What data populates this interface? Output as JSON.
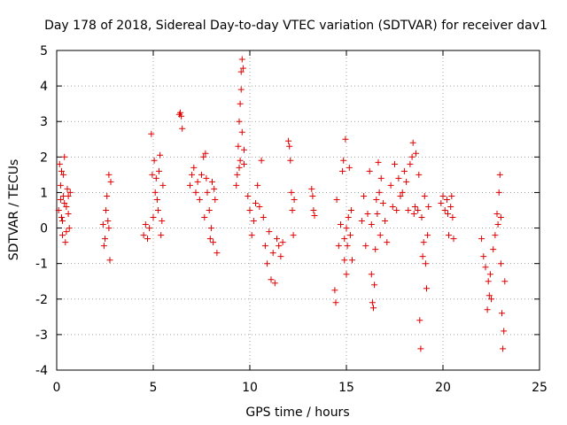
{
  "chart_data": {
    "type": "scatter",
    "title": "Day 178 of 2018, Sidereal Day-to-day VTEC variation (SDTVAR) for receiver dav1",
    "xlabel": "GPS time / hours",
    "ylabel": "SDTVAR / TECUs",
    "xlim": [
      0,
      25
    ],
    "ylim": [
      -4,
      5
    ],
    "xticks": [
      "0",
      "5",
      "10",
      "15",
      "20",
      "25"
    ],
    "yticks": [
      "-4",
      "-3",
      "-2",
      "-1",
      "0",
      "1",
      "2",
      "3",
      "4",
      "5"
    ],
    "grid": true,
    "marker": "+",
    "color": "#e00000",
    "series": [
      {
        "name": "dav1",
        "points": [
          [
            0.1,
            0.5
          ],
          [
            0.15,
            1.8
          ],
          [
            0.2,
            1.2
          ],
          [
            0.25,
            0.3
          ],
          [
            0.3,
            -0.2
          ],
          [
            0.35,
            0.9
          ],
          [
            0.4,
            2.0
          ],
          [
            0.45,
            -0.4
          ],
          [
            0.5,
            0.6
          ],
          [
            0.55,
            1.1
          ],
          [
            0.6,
            0.4
          ],
          [
            0.65,
            0.0
          ],
          [
            0.7,
            1.0
          ],
          [
            0.2,
            0.8
          ],
          [
            0.3,
            0.2
          ],
          [
            0.4,
            0.7
          ],
          [
            0.5,
            -0.1
          ],
          [
            0.6,
            0.9
          ],
          [
            0.35,
            1.5
          ],
          [
            0.25,
            1.6
          ],
          [
            2.4,
            0.1
          ],
          [
            2.5,
            -0.3
          ],
          [
            2.6,
            0.9
          ],
          [
            2.7,
            1.5
          ],
          [
            2.75,
            -0.9
          ],
          [
            2.55,
            0.5
          ],
          [
            2.65,
            0.2
          ],
          [
            2.45,
            -0.5
          ],
          [
            2.7,
            0.0
          ],
          [
            2.8,
            1.3
          ],
          [
            4.5,
            -0.2
          ],
          [
            4.6,
            0.1
          ],
          [
            4.7,
            -0.3
          ],
          [
            4.8,
            0.0
          ],
          [
            4.9,
            2.65
          ],
          [
            4.95,
            1.5
          ],
          [
            5.0,
            0.3
          ],
          [
            5.1,
            1.0
          ],
          [
            5.2,
            0.8
          ],
          [
            5.3,
            1.6
          ],
          [
            5.35,
            2.05
          ],
          [
            5.4,
            -0.2
          ],
          [
            5.45,
            0.2
          ],
          [
            5.5,
            1.2
          ],
          [
            5.15,
            1.4
          ],
          [
            5.25,
            0.5
          ],
          [
            5.05,
            1.9
          ],
          [
            6.35,
            3.2
          ],
          [
            6.4,
            3.25
          ],
          [
            6.45,
            3.15
          ],
          [
            6.5,
            2.8
          ],
          [
            6.9,
            1.2
          ],
          [
            7.0,
            1.5
          ],
          [
            7.1,
            1.7
          ],
          [
            7.2,
            1.0
          ],
          [
            7.3,
            1.3
          ],
          [
            7.4,
            0.8
          ],
          [
            7.5,
            1.5
          ],
          [
            7.6,
            2.0
          ],
          [
            7.7,
            2.1
          ],
          [
            7.8,
            1.0
          ],
          [
            7.9,
            0.5
          ],
          [
            8.0,
            0.0
          ],
          [
            8.05,
            1.3
          ],
          [
            8.1,
            -0.4
          ],
          [
            8.2,
            0.8
          ],
          [
            8.3,
            -0.7
          ],
          [
            7.65,
            0.3
          ],
          [
            7.75,
            1.4
          ],
          [
            7.95,
            -0.3
          ],
          [
            8.15,
            1.1
          ],
          [
            9.3,
            1.2
          ],
          [
            9.35,
            1.5
          ],
          [
            9.4,
            2.3
          ],
          [
            9.45,
            3.0
          ],
          [
            9.5,
            3.5
          ],
          [
            9.55,
            4.4
          ],
          [
            9.6,
            4.75
          ],
          [
            9.65,
            4.5
          ],
          [
            9.7,
            2.2
          ],
          [
            9.5,
            1.9
          ],
          [
            9.55,
            3.9
          ],
          [
            9.6,
            2.7
          ],
          [
            9.45,
            1.7
          ],
          [
            9.7,
            1.8
          ],
          [
            9.9,
            0.9
          ],
          [
            10.0,
            0.5
          ],
          [
            10.1,
            -0.2
          ],
          [
            10.2,
            0.2
          ],
          [
            10.3,
            0.7
          ],
          [
            10.4,
            1.2
          ],
          [
            10.5,
            0.6
          ],
          [
            10.6,
            1.9
          ],
          [
            10.7,
            0.3
          ],
          [
            10.8,
            -0.5
          ],
          [
            10.9,
            -1.0
          ],
          [
            11.0,
            -0.1
          ],
          [
            11.1,
            -1.45
          ],
          [
            11.2,
            -0.7
          ],
          [
            11.3,
            -1.55
          ],
          [
            11.4,
            -0.3
          ],
          [
            11.5,
            -0.5
          ],
          [
            11.6,
            -0.8
          ],
          [
            11.7,
            -0.4
          ],
          [
            12.0,
            2.45
          ],
          [
            12.05,
            2.3
          ],
          [
            12.1,
            1.9
          ],
          [
            12.15,
            1.0
          ],
          [
            12.2,
            0.5
          ],
          [
            12.25,
            -0.2
          ],
          [
            12.3,
            0.8
          ],
          [
            13.2,
            1.1
          ],
          [
            13.25,
            0.9
          ],
          [
            13.3,
            0.5
          ],
          [
            13.35,
            0.35
          ],
          [
            14.4,
            -1.75
          ],
          [
            14.45,
            -2.1
          ],
          [
            14.5,
            0.8
          ],
          [
            14.6,
            -0.5
          ],
          [
            14.7,
            0.1
          ],
          [
            14.8,
            1.6
          ],
          [
            14.85,
            1.9
          ],
          [
            14.9,
            -0.9
          ],
          [
            14.95,
            2.5
          ],
          [
            15.0,
            -1.3
          ],
          [
            15.05,
            -0.5
          ],
          [
            15.1,
            0.3
          ],
          [
            15.15,
            1.7
          ],
          [
            15.2,
            -0.2
          ],
          [
            15.25,
            0.5
          ],
          [
            15.3,
            -0.9
          ],
          [
            14.9,
            -0.3
          ],
          [
            15.0,
            0.0
          ],
          [
            15.8,
            0.2
          ],
          [
            15.9,
            0.9
          ],
          [
            16.0,
            -0.5
          ],
          [
            16.1,
            0.4
          ],
          [
            16.2,
            1.6
          ],
          [
            16.3,
            -1.3
          ],
          [
            16.35,
            -2.1
          ],
          [
            16.4,
            -2.25
          ],
          [
            16.45,
            -1.6
          ],
          [
            16.5,
            -0.6
          ],
          [
            16.55,
            0.8
          ],
          [
            16.6,
            0.4
          ],
          [
            16.7,
            1.0
          ],
          [
            16.8,
            1.4
          ],
          [
            16.9,
            0.7
          ],
          [
            17.0,
            0.2
          ],
          [
            17.1,
            -0.4
          ],
          [
            16.65,
            1.85
          ],
          [
            16.75,
            -0.2
          ],
          [
            16.3,
            0.1
          ],
          [
            17.3,
            1.2
          ],
          [
            17.4,
            0.6
          ],
          [
            17.5,
            1.8
          ],
          [
            17.6,
            0.5
          ],
          [
            17.7,
            1.4
          ],
          [
            17.8,
            0.9
          ],
          [
            17.9,
            1.0
          ],
          [
            18.0,
            1.6
          ],
          [
            18.1,
            1.3
          ],
          [
            18.2,
            0.5
          ],
          [
            18.3,
            1.8
          ],
          [
            18.4,
            2.0
          ],
          [
            18.45,
            2.4
          ],
          [
            18.5,
            0.4
          ],
          [
            18.55,
            0.6
          ],
          [
            18.6,
            2.1
          ],
          [
            18.7,
            0.5
          ],
          [
            18.75,
            1.5
          ],
          [
            18.8,
            -2.6
          ],
          [
            18.85,
            -3.4
          ],
          [
            18.9,
            0.3
          ],
          [
            19.0,
            -0.4
          ],
          [
            19.1,
            -1.0
          ],
          [
            19.15,
            -1.7
          ],
          [
            19.2,
            -0.2
          ],
          [
            19.25,
            0.6
          ],
          [
            18.95,
            -0.8
          ],
          [
            19.05,
            0.9
          ],
          [
            19.9,
            0.7
          ],
          [
            20.0,
            0.9
          ],
          [
            20.1,
            0.5
          ],
          [
            20.2,
            0.8
          ],
          [
            20.3,
            -0.2
          ],
          [
            20.4,
            0.6
          ],
          [
            20.5,
            0.3
          ],
          [
            20.55,
            -0.3
          ],
          [
            20.25,
            0.4
          ],
          [
            20.45,
            0.9
          ],
          [
            22.0,
            -0.3
          ],
          [
            22.1,
            -0.8
          ],
          [
            22.2,
            -1.1
          ],
          [
            22.3,
            -2.3
          ],
          [
            22.35,
            -1.5
          ],
          [
            22.4,
            -1.9
          ],
          [
            22.5,
            -2.0
          ],
          [
            22.6,
            -0.6
          ],
          [
            22.7,
            -0.2
          ],
          [
            22.8,
            0.4
          ],
          [
            22.9,
            1.0
          ],
          [
            22.95,
            1.5
          ],
          [
            23.0,
            -1.0
          ],
          [
            23.05,
            -2.4
          ],
          [
            23.1,
            -3.4
          ],
          [
            23.15,
            -2.9
          ],
          [
            23.2,
            -1.5
          ],
          [
            22.85,
            0.1
          ],
          [
            23.0,
            0.3
          ],
          [
            22.45,
            -1.3
          ]
        ]
      }
    ]
  }
}
